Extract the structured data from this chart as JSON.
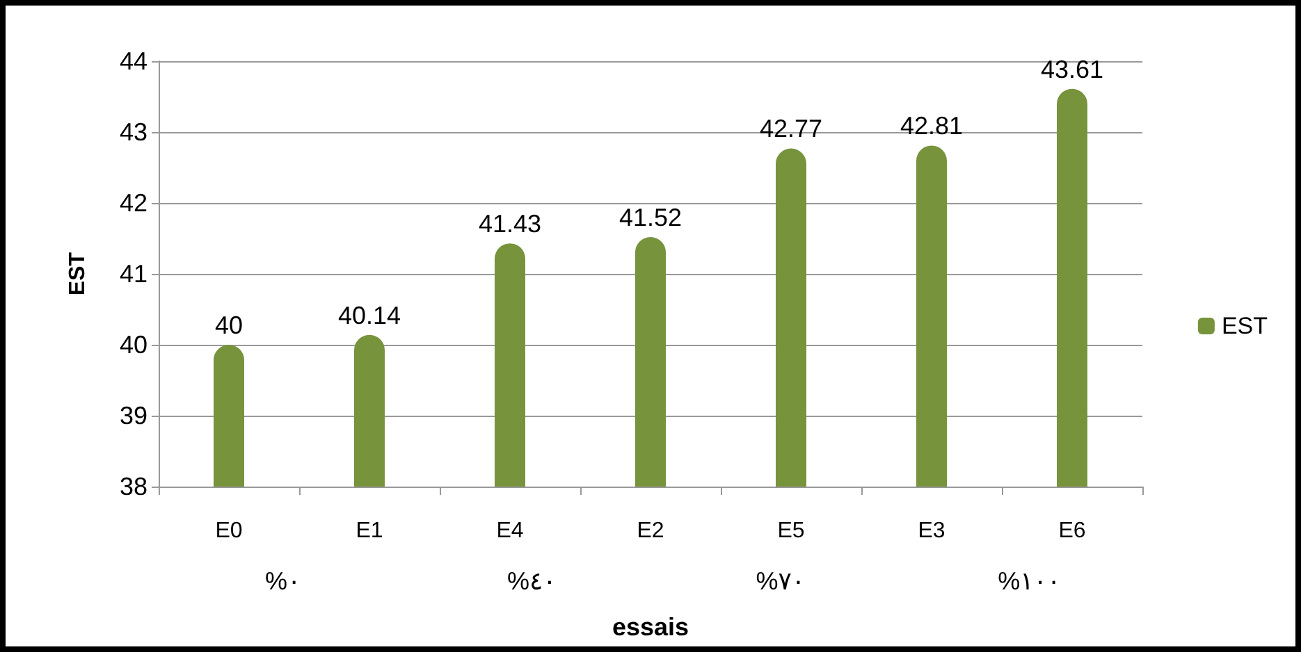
{
  "chart_data": {
    "type": "bar",
    "xlabel": "essais",
    "ylabel": "EST",
    "categories": [
      "E0",
      "E1",
      "E4",
      "E2",
      "E5",
      "E3",
      "E6"
    ],
    "series": [
      {
        "name": "EST",
        "color": "#77933c",
        "values": [
          40,
          40.14,
          41.43,
          41.52,
          42.77,
          42.81,
          43.61
        ]
      }
    ],
    "ylim": [
      38,
      44
    ],
    "yticks": [
      38,
      39,
      40,
      41,
      42,
      43,
      44
    ],
    "grid": "y",
    "legend": "right",
    "data_labels": true,
    "annotations": [
      "%٠",
      "%٤٠",
      "%٧٠",
      "%١٠٠"
    ]
  }
}
